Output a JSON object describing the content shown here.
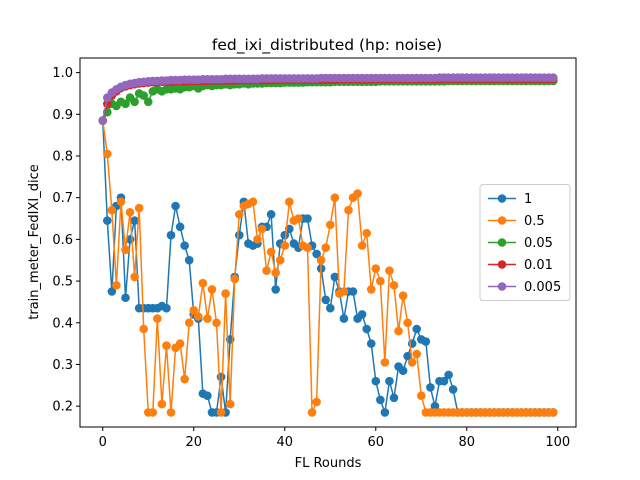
{
  "chart_data": {
    "type": "line",
    "title": "fed_ixi_distributed (hp: noise)",
    "xlabel": "FL Rounds",
    "ylabel": "train_meter_FedIXI_dice",
    "xlim": [
      -5,
      104
    ],
    "ylim": [
      0.15,
      1.035
    ],
    "xticks": [
      0,
      20,
      40,
      60,
      80,
      100
    ],
    "yticks": [
      0.2,
      0.3,
      0.4,
      0.5,
      0.6,
      0.7,
      0.8,
      0.9,
      1.0
    ],
    "xtick_labels": [
      "0",
      "20",
      "40",
      "60",
      "80",
      "100"
    ],
    "ytick_labels": [
      "0.2",
      "0.3",
      "0.4",
      "0.5",
      "0.6",
      "0.7",
      "0.8",
      "0.9",
      "1.0"
    ],
    "grid": false,
    "legend_position": "center-right",
    "marker": "circle",
    "x": [
      0,
      1,
      2,
      3,
      4,
      5,
      6,
      7,
      8,
      9,
      10,
      11,
      12,
      13,
      14,
      15,
      16,
      17,
      18,
      19,
      20,
      21,
      22,
      23,
      24,
      25,
      26,
      27,
      28,
      29,
      30,
      31,
      32,
      33,
      34,
      35,
      36,
      37,
      38,
      39,
      40,
      41,
      42,
      43,
      44,
      45,
      46,
      47,
      48,
      49,
      50,
      51,
      52,
      53,
      54,
      55,
      56,
      57,
      58,
      59,
      60,
      61,
      62,
      63,
      64,
      65,
      66,
      67,
      68,
      69,
      70,
      71,
      72,
      73,
      74,
      75,
      76,
      77,
      78,
      79,
      80,
      81,
      82,
      83,
      84,
      85,
      86,
      87,
      88,
      89,
      90,
      91,
      92,
      93,
      94,
      95,
      96,
      97,
      98,
      99
    ],
    "series": [
      {
        "name": "1",
        "color": "#1f77b4",
        "values": [
          0.885,
          0.645,
          0.475,
          0.68,
          0.7,
          0.46,
          0.6,
          0.645,
          0.435,
          0.435,
          0.435,
          0.435,
          0.435,
          0.44,
          0.435,
          0.61,
          0.68,
          0.63,
          0.585,
          0.55,
          0.42,
          0.41,
          0.23,
          0.225,
          0.185,
          0.185,
          0.27,
          0.185,
          0.36,
          0.51,
          0.61,
          0.69,
          0.59,
          0.585,
          0.59,
          0.63,
          0.63,
          0.66,
          0.48,
          0.59,
          0.61,
          0.625,
          0.59,
          0.58,
          0.65,
          0.65,
          0.585,
          0.565,
          0.53,
          0.455,
          0.435,
          0.51,
          0.475,
          0.41,
          0.475,
          0.475,
          0.41,
          0.42,
          0.385,
          0.35,
          0.26,
          0.215,
          0.185,
          0.26,
          0.22,
          0.295,
          0.285,
          0.32,
          0.35,
          0.385,
          0.36,
          0.355,
          0.245,
          0.2,
          0.26,
          0.26,
          0.275,
          0.24,
          0.185,
          0.185,
          0.185,
          0.185,
          0.185,
          0.185,
          0.185,
          0.185,
          0.185,
          0.185,
          0.185,
          0.185,
          0.185,
          0.185,
          0.185,
          0.185,
          0.185,
          0.185,
          0.185,
          0.185,
          0.185,
          0.185
        ]
      },
      {
        "name": "0.5",
        "color": "#ff7f0e",
        "values": [
          0.885,
          0.805,
          0.67,
          0.49,
          0.69,
          0.575,
          0.665,
          0.51,
          0.675,
          0.385,
          0.185,
          0.185,
          0.41,
          0.205,
          0.345,
          0.185,
          0.34,
          0.35,
          0.265,
          0.4,
          0.43,
          0.415,
          0.495,
          0.41,
          0.48,
          0.4,
          0.185,
          0.47,
          0.205,
          0.505,
          0.66,
          0.68,
          0.685,
          0.69,
          0.6,
          0.625,
          0.525,
          0.57,
          0.52,
          0.55,
          0.585,
          0.69,
          0.645,
          0.65,
          0.585,
          0.58,
          0.185,
          0.21,
          0.55,
          0.58,
          0.635,
          0.7,
          0.47,
          0.475,
          0.67,
          0.7,
          0.71,
          0.585,
          0.615,
          0.48,
          0.53,
          0.5,
          0.305,
          0.525,
          0.49,
          0.38,
          0.465,
          0.4,
          0.305,
          0.325,
          0.225,
          0.185,
          0.185,
          0.185,
          0.185,
          0.185,
          0.185,
          0.185,
          0.185,
          0.185,
          0.185,
          0.185,
          0.185,
          0.185,
          0.185,
          0.185,
          0.185,
          0.185,
          0.185,
          0.185,
          0.185,
          0.185,
          0.185,
          0.185,
          0.185,
          0.185,
          0.185,
          0.185,
          0.185,
          0.185
        ]
      },
      {
        "name": "0.05",
        "color": "#2ca02c",
        "values": [
          0.885,
          0.905,
          0.925,
          0.92,
          0.93,
          0.925,
          0.94,
          0.93,
          0.95,
          0.945,
          0.93,
          0.955,
          0.96,
          0.955,
          0.96,
          0.96,
          0.962,
          0.96,
          0.965,
          0.965,
          0.968,
          0.962,
          0.968,
          0.97,
          0.968,
          0.97,
          0.97,
          0.972,
          0.97,
          0.972,
          0.972,
          0.974,
          0.972,
          0.974,
          0.974,
          0.974,
          0.975,
          0.975,
          0.975,
          0.975,
          0.976,
          0.976,
          0.976,
          0.976,
          0.976,
          0.977,
          0.977,
          0.977,
          0.977,
          0.977,
          0.977,
          0.978,
          0.978,
          0.978,
          0.978,
          0.978,
          0.978,
          0.978,
          0.978,
          0.978,
          0.978,
          0.979,
          0.979,
          0.979,
          0.979,
          0.979,
          0.979,
          0.979,
          0.979,
          0.979,
          0.979,
          0.979,
          0.979,
          0.979,
          0.979,
          0.979,
          0.98,
          0.98,
          0.98,
          0.98,
          0.98,
          0.98,
          0.98,
          0.98,
          0.98,
          0.98,
          0.98,
          0.98,
          0.98,
          0.98,
          0.98,
          0.98,
          0.98,
          0.98,
          0.98,
          0.98,
          0.98,
          0.98,
          0.98,
          0.98
        ]
      },
      {
        "name": "0.01",
        "color": "#d62728",
        "values": [
          0.885,
          0.925,
          0.945,
          0.955,
          0.963,
          0.967,
          0.97,
          0.972,
          0.974,
          0.975,
          0.976,
          0.977,
          0.977,
          0.978,
          0.978,
          0.978,
          0.979,
          0.979,
          0.979,
          0.98,
          0.98,
          0.98,
          0.98,
          0.98,
          0.981,
          0.981,
          0.981,
          0.981,
          0.981,
          0.981,
          0.982,
          0.982,
          0.982,
          0.982,
          0.982,
          0.982,
          0.982,
          0.982,
          0.982,
          0.983,
          0.983,
          0.983,
          0.983,
          0.983,
          0.983,
          0.983,
          0.983,
          0.983,
          0.983,
          0.983,
          0.983,
          0.983,
          0.984,
          0.984,
          0.984,
          0.984,
          0.984,
          0.984,
          0.984,
          0.984,
          0.984,
          0.984,
          0.984,
          0.984,
          0.984,
          0.984,
          0.984,
          0.984,
          0.984,
          0.984,
          0.984,
          0.984,
          0.984,
          0.984,
          0.985,
          0.985,
          0.985,
          0.985,
          0.985,
          0.985,
          0.985,
          0.985,
          0.985,
          0.985,
          0.985,
          0.985,
          0.985,
          0.985,
          0.985,
          0.985,
          0.985,
          0.985,
          0.985,
          0.985,
          0.985,
          0.985,
          0.985,
          0.985,
          0.985,
          0.985
        ]
      },
      {
        "name": "0.005",
        "color": "#9467bd",
        "values": [
          0.885,
          0.94,
          0.952,
          0.96,
          0.966,
          0.97,
          0.973,
          0.975,
          0.977,
          0.978,
          0.979,
          0.98,
          0.98,
          0.981,
          0.981,
          0.982,
          0.982,
          0.982,
          0.983,
          0.983,
          0.983,
          0.983,
          0.984,
          0.984,
          0.984,
          0.984,
          0.984,
          0.985,
          0.985,
          0.985,
          0.985,
          0.985,
          0.985,
          0.985,
          0.985,
          0.986,
          0.986,
          0.986,
          0.986,
          0.986,
          0.986,
          0.986,
          0.986,
          0.986,
          0.986,
          0.986,
          0.986,
          0.986,
          0.987,
          0.987,
          0.987,
          0.987,
          0.987,
          0.987,
          0.987,
          0.987,
          0.987,
          0.987,
          0.987,
          0.987,
          0.987,
          0.987,
          0.987,
          0.987,
          0.987,
          0.987,
          0.987,
          0.987,
          0.987,
          0.987,
          0.987,
          0.987,
          0.987,
          0.987,
          0.988,
          0.988,
          0.988,
          0.988,
          0.988,
          0.988,
          0.988,
          0.988,
          0.988,
          0.988,
          0.988,
          0.988,
          0.988,
          0.988,
          0.988,
          0.988,
          0.988,
          0.988,
          0.988,
          0.988,
          0.988,
          0.988,
          0.988,
          0.988,
          0.988,
          0.988
        ]
      }
    ]
  }
}
